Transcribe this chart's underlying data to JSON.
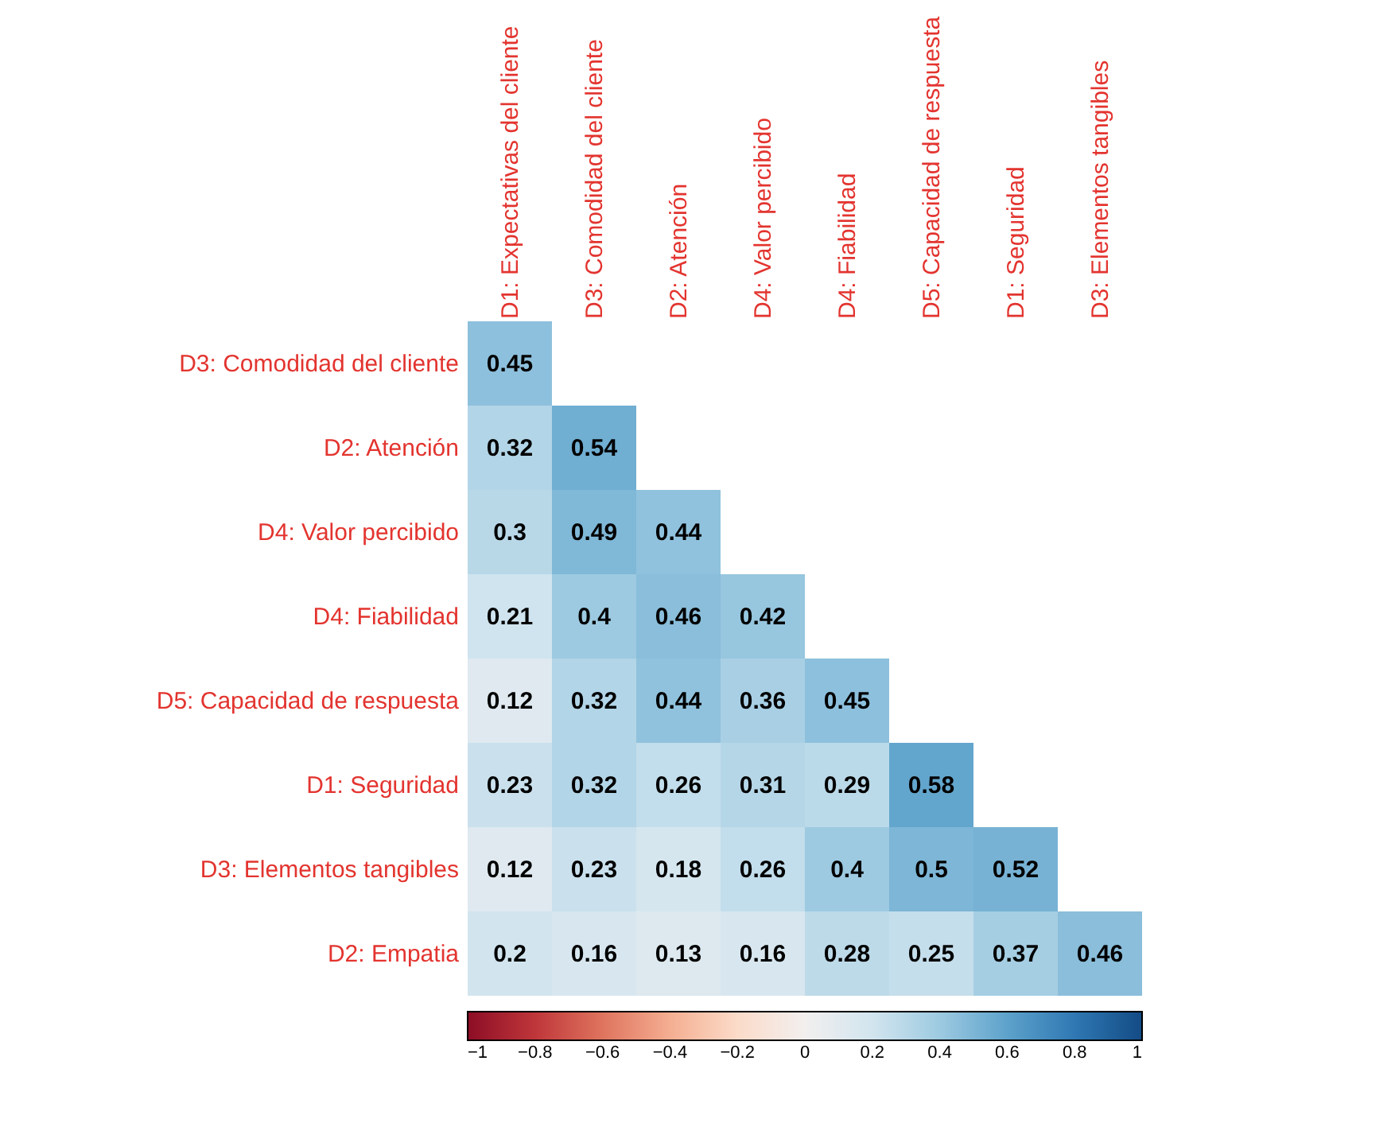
{
  "chart_data": {
    "type": "heatmap",
    "categories": [
      "D1: Expectativas del cliente",
      "D3:  Comodidad del cliente",
      "D2: Atención",
      "D4: Valor percibido",
      "D4: Fiabilidad",
      "D5: Capacidad de respuesta",
      "D1: Seguridad",
      "D3: Elementos tangibles"
    ],
    "y_categories": [
      "D3:  Comodidad del cliente",
      "D2: Atención",
      "D4: Valor percibido",
      "D4: Fiabilidad",
      "D5: Capacidad de respuesta",
      "D1: Seguridad",
      "D3: Elementos tangibles",
      "D2: Empatia"
    ],
    "cells": [
      [
        0.45,
        null,
        null,
        null,
        null,
        null,
        null,
        null
      ],
      [
        0.32,
        0.54,
        null,
        null,
        null,
        null,
        null,
        null
      ],
      [
        0.3,
        0.49,
        0.44,
        null,
        null,
        null,
        null,
        null
      ],
      [
        0.21,
        0.4,
        0.46,
        0.42,
        null,
        null,
        null,
        null
      ],
      [
        0.12,
        0.32,
        0.44,
        0.36,
        0.45,
        null,
        null,
        null
      ],
      [
        0.23,
        0.32,
        0.26,
        0.31,
        0.29,
        0.58,
        null,
        null
      ],
      [
        0.12,
        0.23,
        0.18,
        0.26,
        0.4,
        0.5,
        0.52,
        null
      ],
      [
        0.2,
        0.16,
        0.13,
        0.16,
        0.28,
        0.25,
        0.37,
        0.46
      ]
    ],
    "clim": [
      -1,
      1
    ],
    "cticks": [
      -1,
      -0.8,
      -0.6,
      -0.4,
      -0.2,
      0,
      0.2,
      0.4,
      0.6,
      0.8,
      1
    ],
    "data_labels": true
  }
}
